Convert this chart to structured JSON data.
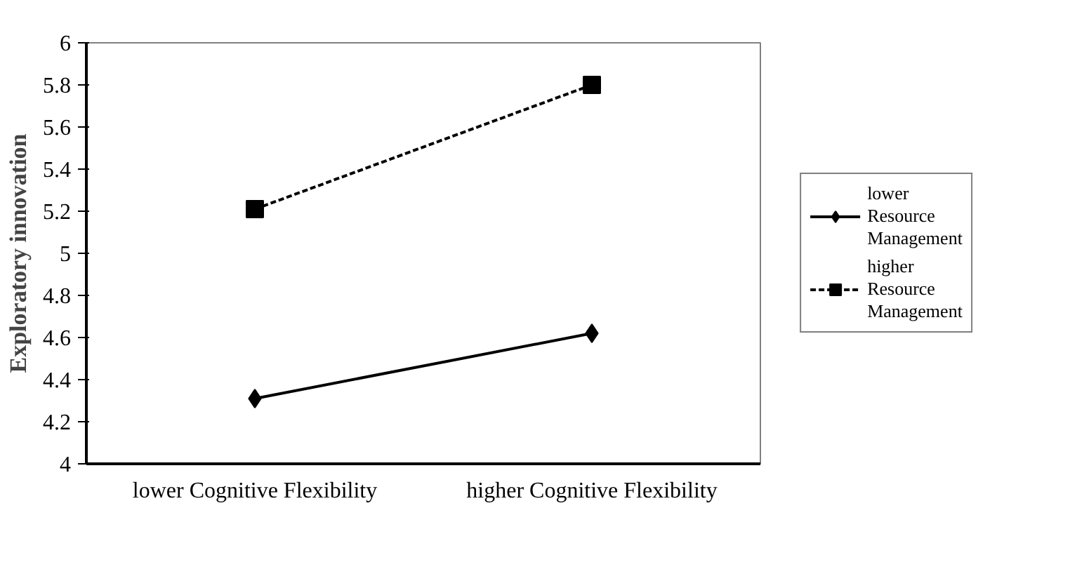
{
  "chart_data": {
    "type": "line",
    "ylabel": "Exploratory innovation",
    "categories": [
      "lower Cognitive Flexibility",
      "higher Cognitive Flexibility"
    ],
    "series": [
      {
        "name": "lower Resource Management",
        "color": "#000000",
        "values": [
          4.31,
          4.62
        ],
        "marker": "diamond",
        "line_style": "solid"
      },
      {
        "name": "higher Resource Management",
        "color": "#000000",
        "values": [
          5.21,
          5.8
        ],
        "marker": "square",
        "line_style": "dashed"
      }
    ],
    "ylim": [
      4,
      6
    ],
    "yticks": [
      4,
      {
        "value": 4.2,
        "label": "4.2"
      },
      {
        "value": 4.4,
        "label": "4.4"
      },
      {
        "value": 4.6,
        "label": "4.6"
      },
      {
        "value": 4.8,
        "label": "4.8"
      },
      5,
      {
        "value": 5.2,
        "label": "5.2"
      },
      {
        "value": 5.4,
        "label": "5.4"
      },
      {
        "value": 5.6,
        "label": "5.6"
      },
      {
        "value": 5.8,
        "label": "5.8"
      },
      6
    ],
    "grid": false,
    "legend": "right"
  }
}
